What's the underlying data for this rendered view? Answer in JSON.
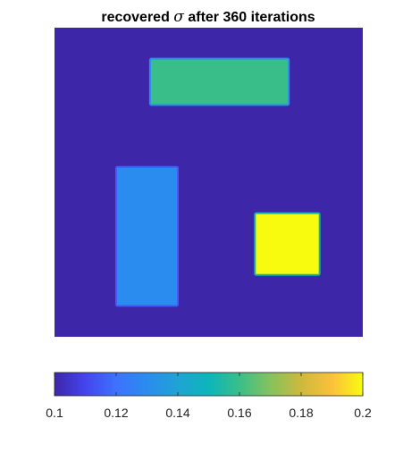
{
  "chart_data": {
    "type": "heatmap",
    "title": {
      "before": "recovered ",
      "symbol": "σ",
      "after": " after 360 iterations"
    },
    "xlabel": "",
    "ylabel": "",
    "axes_visible": false,
    "grid": false,
    "background_value": 0.1,
    "regions": [
      {
        "value": 0.16,
        "x": [
          0.31,
          0.76
        ],
        "y": [
          0.75,
          0.9
        ]
      },
      {
        "value": 0.13,
        "x": [
          0.2,
          0.4
        ],
        "y": [
          0.1,
          0.55
        ]
      },
      {
        "value": 0.2,
        "x": [
          0.65,
          0.86
        ],
        "y": [
          0.2,
          0.4
        ]
      }
    ],
    "colorbar": {
      "orientation": "horizontal",
      "location": "bottom",
      "colormap": "parula",
      "range": [
        0.1,
        0.2
      ],
      "ticks": [
        0.1,
        0.12,
        0.14,
        0.16,
        0.18,
        0.2
      ],
      "tick_labels": [
        "0.1",
        "0.12",
        "0.14",
        "0.16",
        "0.18",
        "0.2"
      ]
    }
  }
}
